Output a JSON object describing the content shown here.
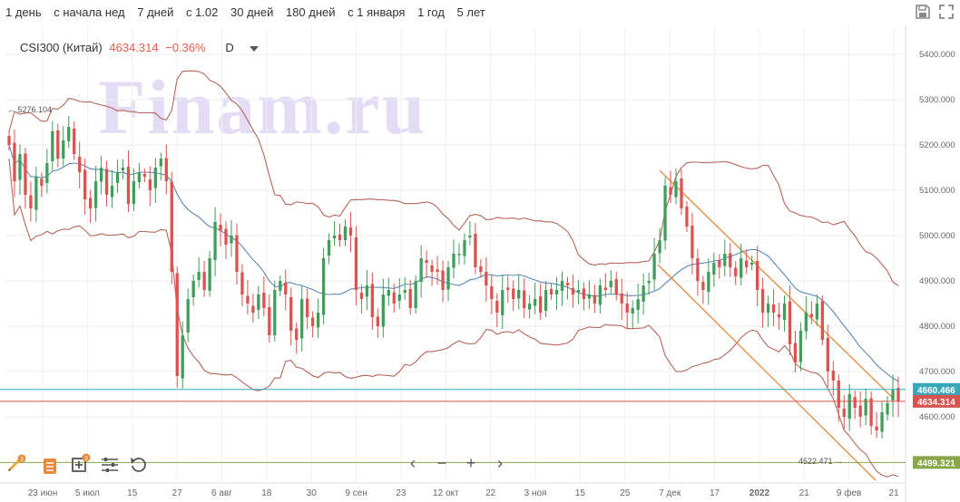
{
  "ranges": [
    "1 день",
    "с начала нед",
    "7 дней",
    "с 1.02",
    "30 дней",
    "180 дней",
    "с 1 января",
    "1 год",
    "5 лет"
  ],
  "legend": {
    "symbol": "CSI300 (Китай)",
    "price": "4634.314",
    "change": "−0.36%",
    "interval": "D"
  },
  "watermark": "Finam.ru",
  "y_axis_labels": [
    "5400.000",
    "5300.000",
    "5200.000",
    "5100.000",
    "5000.000",
    "4900.000",
    "4800.000",
    "4700.000",
    "4600.000"
  ],
  "x_axis_labels": [
    "23 июн",
    "5 июл",
    "15",
    "27",
    "6 авг",
    "18",
    "30",
    "9 сен",
    "23",
    "12 окт",
    "22",
    "3 ноя",
    "15",
    "25",
    "7 дек",
    "17",
    "2022",
    "21",
    "9 фев",
    "21"
  ],
  "price_tags": [
    {
      "value": "4660.466",
      "color": "#37a8b8"
    },
    {
      "value": "4634.314",
      "color": "#d9534f"
    },
    {
      "value": "4499.321",
      "color": "#8aa64a"
    }
  ],
  "annotations": {
    "high": "5276.104",
    "low": "4522.471"
  },
  "icons": [
    "save-icon",
    "fullscreen-icon",
    "draw-tool-icon",
    "orders-icon",
    "add-indicator-icon",
    "settings-icon",
    "reset-icon"
  ],
  "nav": [
    "‹",
    "−",
    "+",
    "›"
  ],
  "badges": {
    "draw": "3",
    "indicators": "3"
  },
  "colors": {
    "up": "#3f9e5b",
    "down": "#d9534f",
    "ma": "#5a88b8",
    "bands": "#b5655a",
    "channel": "#e58a3a"
  },
  "chart_data": {
    "type": "candlestick",
    "ylim": [
      4460,
      5460
    ],
    "close": [
      5200,
      5120,
      5180,
      5090,
      5060,
      5130,
      5110,
      5160,
      5230,
      5170,
      5210,
      5240,
      5180,
      5140,
      5080,
      5060,
      5120,
      5150,
      5090,
      5110,
      5140,
      5150,
      5070,
      5120,
      5140,
      5130,
      5100,
      5150,
      5170,
      5120,
      4920,
      4690,
      4780,
      4860,
      4900,
      4920,
      4880,
      4950,
      5030,
      5010,
      4980,
      5000,
      4920,
      4870,
      4850,
      4830,
      4870,
      4840,
      4780,
      4880,
      4900,
      4870,
      4790,
      4770,
      4860,
      4820,
      4800,
      4830,
      4950,
      4990,
      5000,
      4990,
      5020,
      5000,
      4880,
      4860,
      4890,
      4820,
      4800,
      4870,
      4880,
      4850,
      4870,
      4880,
      4840,
      4900,
      4950,
      4940,
      4920,
      4920,
      4880,
      4930,
      4960,
      4960,
      4990,
      5000,
      4930,
      4920,
      4890,
      4860,
      4830,
      4880,
      4880,
      4860,
      4880,
      4840,
      4850,
      4860,
      4830,
      4880,
      4870,
      4880,
      4900,
      4890,
      4870,
      4880,
      4860,
      4870,
      4850,
      4890,
      4880,
      4900,
      4870,
      4850,
      4830,
      4840,
      4860,
      4890,
      4900,
      4960,
      4990,
      5110,
      5090,
      5120,
      5060,
      5020,
      4950,
      4900,
      4880,
      4920,
      4940,
      4930,
      4960,
      4930,
      4910,
      4950,
      4930,
      4940,
      4880,
      4830,
      4850,
      4830,
      4820,
      4850,
      4760,
      4720,
      4790,
      4830,
      4820,
      4850,
      4770,
      4700,
      4680,
      4620,
      4600,
      4650,
      4620,
      4600,
      4640,
      4580,
      4570,
      4610,
      4630,
      4660,
      4634.314
    ]
  }
}
